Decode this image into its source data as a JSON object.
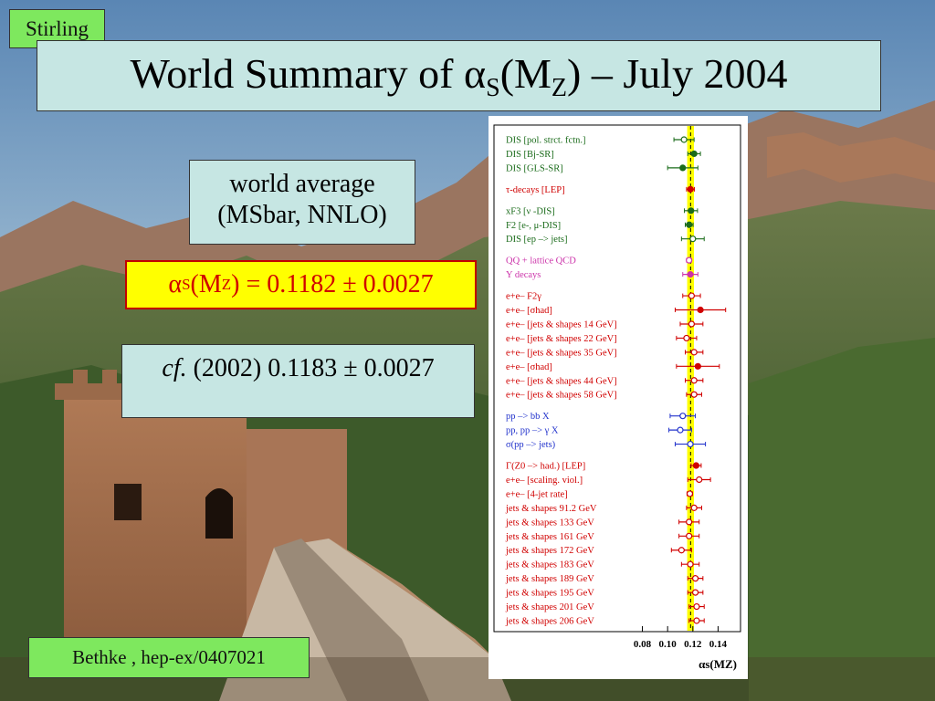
{
  "tag": "Stirling",
  "title": {
    "prefix": "World Summary of α",
    "sub1": "S",
    "mid": "(M",
    "sub2": "Z",
    "suffix": ") – July 2004"
  },
  "average": {
    "line1": "world average",
    "line2": "(MSbar, NNLO)"
  },
  "value": {
    "prefix": "α",
    "sub1": "S",
    "mid": "(M",
    "sub2": "Z",
    "suffix": ") = 0.1182 ± 0.0027"
  },
  "cf": {
    "italic": "cf.",
    "rest": " (2002) 0.1183 ± 0.0027"
  },
  "reference": "Bethke , hep-ex/0407021",
  "chart_data": {
    "type": "scatter",
    "xlabel": "αs(MZ)",
    "xlim": [
      0.055,
      0.152
    ],
    "xticks": [
      "0.08",
      "0.10",
      "0.12",
      "0.14"
    ],
    "world_average": 0.1182,
    "world_average_error": 0.0027,
    "band_color": "#ffff00",
    "measurements": [
      {
        "label": "DIS [pol. strct. fctn.]",
        "value": 0.113,
        "err": 0.008,
        "color": "#1a6b1a",
        "filled": false,
        "group": 0
      },
      {
        "label": "DIS [Bj-SR]",
        "value": 0.121,
        "err": 0.005,
        "color": "#1a6b1a",
        "filled": true,
        "group": 0
      },
      {
        "label": "DIS [GLS-SR]",
        "value": 0.112,
        "err": 0.012,
        "color": "#1a6b1a",
        "filled": true,
        "group": 0
      },
      {
        "label": "τ-decays  [LEP]",
        "value": 0.1181,
        "err": 0.0031,
        "color": "#d00000",
        "filled": true,
        "group": 1
      },
      {
        "label": "xF3  [ν -DIS]",
        "value": 0.1185,
        "err": 0.0052,
        "color": "#1a6b1a",
        "filled": true,
        "group": 2
      },
      {
        "label": "F2  [e-, μ-DIS]",
        "value": 0.1171,
        "err": 0.0031,
        "color": "#1a6b1a",
        "filled": true,
        "group": 2
      },
      {
        "label": "DIS [ep –> jets]",
        "value": 0.12,
        "err": 0.009,
        "color": "#1a6b1a",
        "filled": false,
        "group": 2
      },
      {
        "label": "QQ + lattice QCD",
        "value": 0.117,
        "err": 0.002,
        "color": "#cc33aa",
        "filled": false,
        "group": 3
      },
      {
        "label": "Υ decays",
        "value": 0.118,
        "err": 0.006,
        "color": "#cc33aa",
        "filled": true,
        "group": 3
      },
      {
        "label": "e+e–  F2γ",
        "value": 0.119,
        "err": 0.007,
        "color": "#d00000",
        "filled": false,
        "group": 4
      },
      {
        "label": "e+e– [σhad]",
        "value": 0.126,
        "err": 0.02,
        "color": "#d00000",
        "filled": true,
        "group": 4
      },
      {
        "label": "e+e– [jets & shapes 14 GeV]",
        "value": 0.119,
        "err": 0.009,
        "color": "#d00000",
        "filled": false,
        "group": 4
      },
      {
        "label": "e+e– [jets & shapes 22 GeV]",
        "value": 0.115,
        "err": 0.008,
        "color": "#d00000",
        "filled": false,
        "group": 4
      },
      {
        "label": "e+e– [jets & shapes 35 GeV]",
        "value": 0.121,
        "err": 0.007,
        "color": "#d00000",
        "filled": false,
        "group": 4
      },
      {
        "label": "e+e– [σhad]",
        "value": 0.124,
        "err": 0.017,
        "color": "#d00000",
        "filled": true,
        "group": 4
      },
      {
        "label": "e+e– [jets & shapes 44 GeV]",
        "value": 0.121,
        "err": 0.007,
        "color": "#d00000",
        "filled": false,
        "group": 4
      },
      {
        "label": "e+e– [jets & shapes 58 GeV]",
        "value": 0.121,
        "err": 0.006,
        "color": "#d00000",
        "filled": false,
        "group": 4
      },
      {
        "label": "pp –> bb X",
        "value": 0.112,
        "err": 0.01,
        "color": "#2233cc",
        "filled": false,
        "group": 5
      },
      {
        "label": "pp, pp –> γ X",
        "value": 0.11,
        "err": 0.009,
        "color": "#2233cc",
        "filled": false,
        "group": 5
      },
      {
        "label": "σ(pp –> jets)",
        "value": 0.118,
        "err": 0.012,
        "color": "#2233cc",
        "filled": false,
        "group": 5
      },
      {
        "label": "Γ(Z0 –> had.) [LEP]",
        "value": 0.1226,
        "err": 0.004,
        "color": "#d00000",
        "filled": true,
        "group": 6
      },
      {
        "label": "e+e– [scaling. viol.]",
        "value": 0.125,
        "err": 0.009,
        "color": "#d00000",
        "filled": false,
        "group": 6
      },
      {
        "label": "e+e– [4-jet rate]",
        "value": 0.1176,
        "err": 0.0022,
        "color": "#d00000",
        "filled": false,
        "group": 6
      },
      {
        "label": "jets & shapes 91.2 GeV",
        "value": 0.121,
        "err": 0.006,
        "color": "#d00000",
        "filled": false,
        "group": 6
      },
      {
        "label": "jets & shapes 133 GeV",
        "value": 0.117,
        "err": 0.008,
        "color": "#d00000",
        "filled": false,
        "group": 6
      },
      {
        "label": "jets & shapes 161 GeV",
        "value": 0.117,
        "err": 0.008,
        "color": "#d00000",
        "filled": false,
        "group": 6
      },
      {
        "label": "jets & shapes 172 GeV",
        "value": 0.111,
        "err": 0.008,
        "color": "#d00000",
        "filled": false,
        "group": 6
      },
      {
        "label": "jets & shapes 183 GeV",
        "value": 0.118,
        "err": 0.007,
        "color": "#d00000",
        "filled": false,
        "group": 6
      },
      {
        "label": "jets & shapes 189 GeV",
        "value": 0.122,
        "err": 0.006,
        "color": "#d00000",
        "filled": false,
        "group": 6
      },
      {
        "label": "jets & shapes 195 GeV",
        "value": 0.122,
        "err": 0.006,
        "color": "#d00000",
        "filled": false,
        "group": 6
      },
      {
        "label": "jets & shapes 201 GeV",
        "value": 0.123,
        "err": 0.006,
        "color": "#d00000",
        "filled": false,
        "group": 6
      },
      {
        "label": "jets & shapes 206 GeV",
        "value": 0.123,
        "err": 0.006,
        "color": "#d00000",
        "filled": false,
        "group": 6
      }
    ]
  }
}
